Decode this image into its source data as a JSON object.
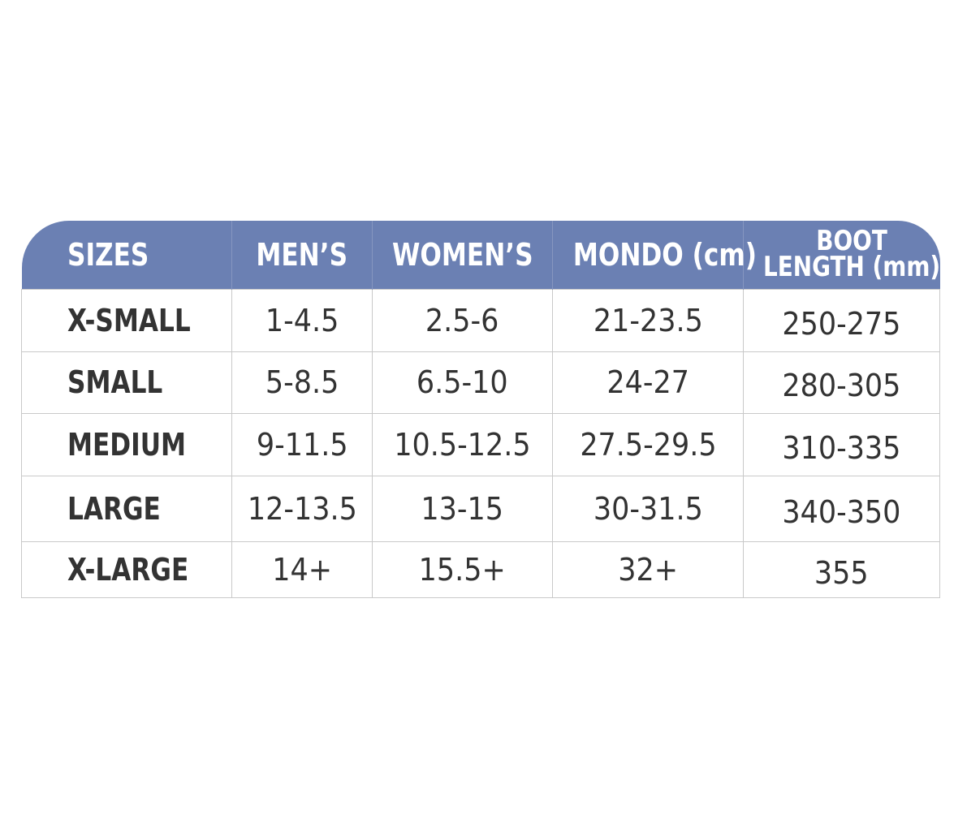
{
  "table": {
    "headers": {
      "sizes": "SIZES",
      "mens": "MEN’S",
      "womens": "WOMEN’S",
      "mondo": "MONDO (cm)",
      "boot_line1": "BOOT",
      "boot_line2": "LENGTH (mm)"
    },
    "rows": [
      {
        "size": "X-SMALL",
        "mens": "1-4.5",
        "womens": "2.5-6",
        "mondo": "21-23.5",
        "boot": "250-275"
      },
      {
        "size": "SMALL",
        "mens": "5-8.5",
        "womens": "6.5-10",
        "mondo": "24-27",
        "boot": "280-305"
      },
      {
        "size": "MEDIUM",
        "mens": "9-11.5",
        "womens": "10.5-12.5",
        "mondo": "27.5-29.5",
        "boot": "310-335"
      },
      {
        "size": "LARGE",
        "mens": "12-13.5",
        "womens": "13-15",
        "mondo": "30-31.5",
        "boot": "340-350"
      },
      {
        "size": "X-LARGE",
        "mens": "14+",
        "womens": "15.5+",
        "mondo": "32+",
        "boot": "355"
      }
    ]
  },
  "colors": {
    "header_bg": "#6b80b3",
    "header_text": "#ffffff",
    "body_text": "#333333",
    "grid_line": "#c9c9c9"
  }
}
